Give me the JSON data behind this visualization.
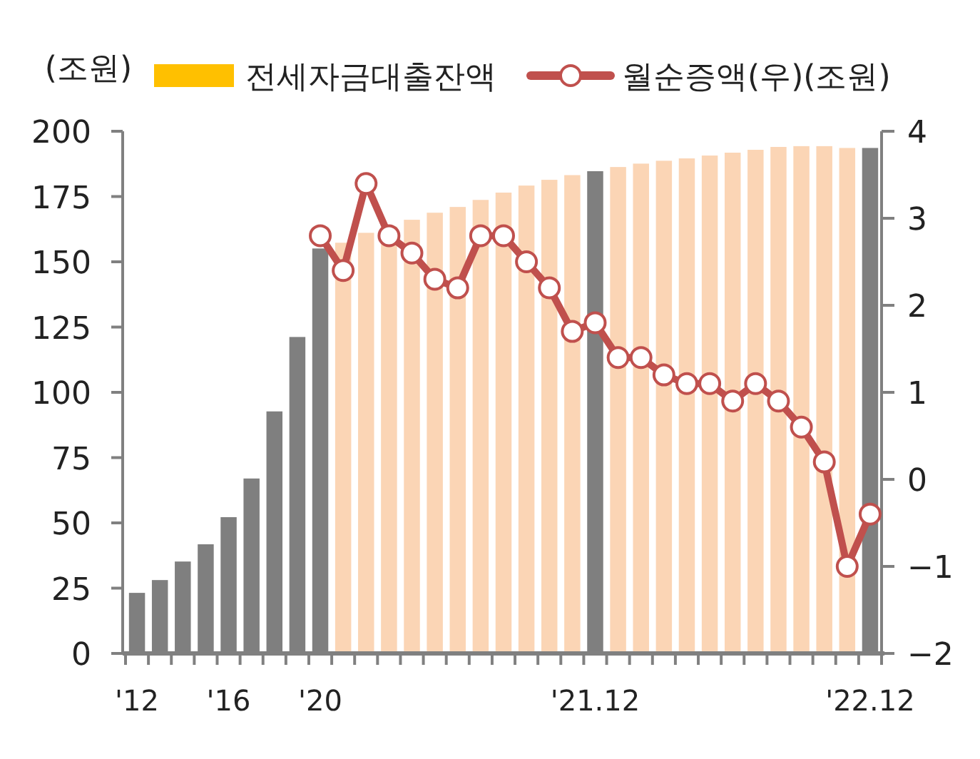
{
  "chart_data": {
    "type": "bar",
    "ylabel": "(조원)",
    "categories": [
      "'12",
      null,
      null,
      null,
      "'16",
      null,
      null,
      null,
      "'20",
      null,
      null,
      null,
      null,
      null,
      null,
      null,
      null,
      null,
      null,
      null,
      "'21.12",
      null,
      null,
      null,
      null,
      null,
      null,
      null,
      null,
      null,
      null,
      null,
      "'22.12"
    ],
    "series": [
      {
        "name": "전세자금대출잔액",
        "color": "#ffc000",
        "colors": [
          "#7f7f7f",
          "#7f7f7f",
          "#7f7f7f",
          "#7f7f7f",
          "#7f7f7f",
          "#7f7f7f",
          "#7f7f7f",
          "#7f7f7f",
          "#7f7f7f",
          "#fbd5b5",
          "#fbd5b5",
          "#fbd5b5",
          "#fbd5b5",
          "#fbd5b5",
          "#fbd5b5",
          "#fbd5b5",
          "#fbd5b5",
          "#fbd5b5",
          "#fbd5b5",
          "#fbd5b5",
          "#7f7f7f",
          "#fbd5b5",
          "#fbd5b5",
          "#fbd5b5",
          "#fbd5b5",
          "#fbd5b5",
          "#fbd5b5",
          "#fbd5b5",
          "#fbd5b5",
          "#fbd5b5",
          "#fbd5b5",
          "#fbd5b5",
          "#7f7f7f"
        ],
        "values": [
          23.2,
          28.1,
          35.2,
          41.8,
          52.2,
          67.0,
          92.7,
          121.2,
          155.1,
          157.3,
          161.1,
          163.5,
          166.1,
          168.8,
          171.0,
          173.7,
          176.5,
          179.2,
          181.4,
          183.2,
          184.7,
          186.3,
          187.6,
          188.7,
          189.6,
          190.7,
          191.8,
          192.9,
          194.0,
          194.3,
          194.3,
          193.6,
          193.6
        ]
      },
      {
        "type": "line",
        "name": "월순증액(우)(조원)",
        "color": "#c0504d",
        "axis": "y2",
        "values": [
          null,
          null,
          null,
          null,
          null,
          null,
          null,
          null,
          2.8,
          2.4,
          3.4,
          2.8,
          2.6,
          2.3,
          2.2,
          2.8,
          2.8,
          2.5,
          2.2,
          1.7,
          1.8,
          1.4,
          1.4,
          1.2,
          1.1,
          1.1,
          0.9,
          1.1,
          0.9,
          0.6,
          0.2,
          -1.0,
          -0.4
        ]
      }
    ],
    "ylim": [
      0,
      200
    ],
    "yticks": [
      0,
      25,
      50,
      75,
      100,
      125,
      150,
      175,
      200
    ],
    "y2lim": [
      -2,
      4
    ],
    "y2ticks": [
      -2,
      -1,
      0,
      1,
      2,
      3,
      4
    ],
    "legend": "top",
    "marker": "circle"
  }
}
